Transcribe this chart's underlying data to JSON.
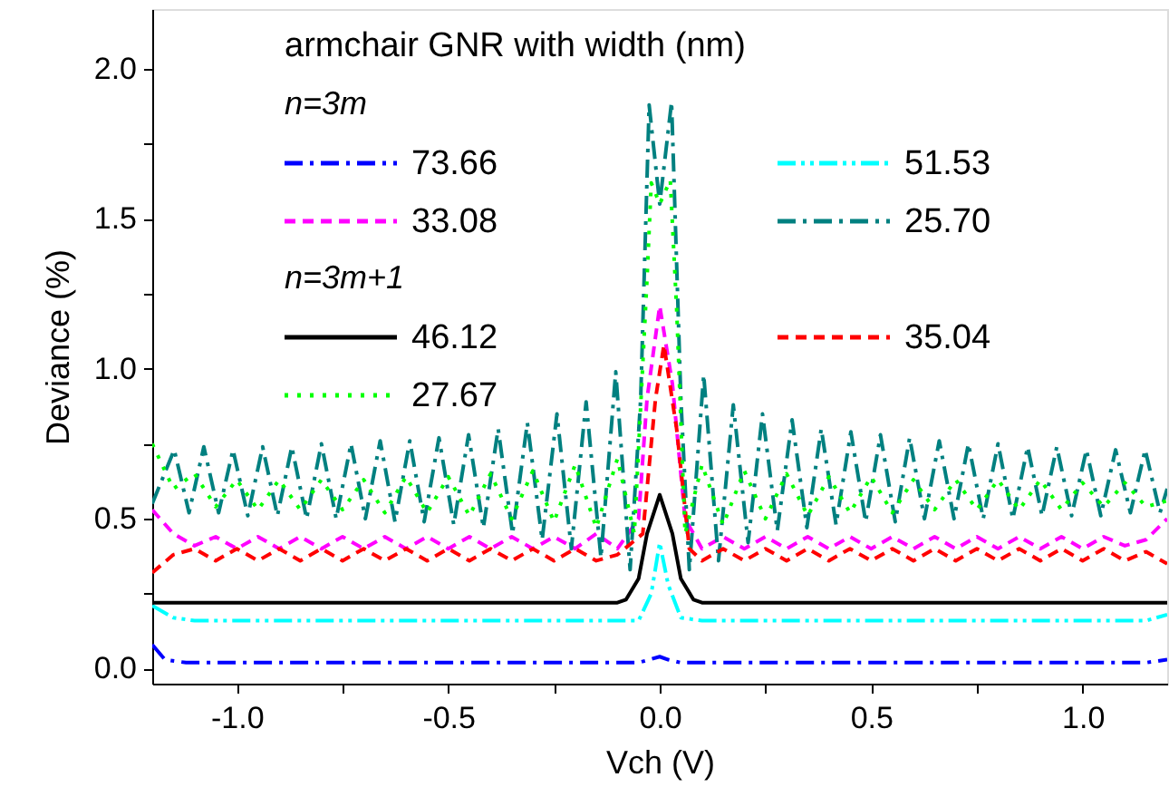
{
  "chart_data": {
    "type": "line",
    "xlabel": "Vch (V)",
    "ylabel": "Deviance (%)",
    "legend_title": "armchair GNR with  width (nm)",
    "legend": "top left",
    "grid": false,
    "annotations": [
      "n=3m",
      "n=3m+1"
    ],
    "xlim": [
      -1.2,
      1.2
    ],
    "ylim": [
      -0.05,
      2.2
    ],
    "xticks": [
      {
        "value": -1.0,
        "label": "-1.0"
      },
      {
        "value": -0.75,
        "label": null
      },
      {
        "value": -0.5,
        "label": "-0.5"
      },
      {
        "value": -0.25,
        "label": null
      },
      {
        "value": 0,
        "label": "0.0"
      },
      {
        "value": 0.25,
        "label": null
      },
      {
        "value": 0.5,
        "label": "0.5"
      },
      {
        "value": 0.75,
        "label": null
      },
      {
        "value": 1.0,
        "label": "1.0"
      }
    ],
    "yticks": [
      {
        "value": 0,
        "label": "0.0"
      },
      {
        "value": 0.25,
        "label": null
      },
      {
        "value": 0.5,
        "label": "0.5"
      },
      {
        "value": 0.75,
        "label": null
      },
      {
        "value": 1.0,
        "label": "1.0"
      },
      {
        "value": 1.25,
        "label": null
      },
      {
        "value": 1.5,
        "label": "1.5"
      },
      {
        "value": 1.75,
        "label": null
      },
      {
        "value": 2.0,
        "label": "2.0"
      }
    ],
    "series": [
      {
        "name": "73.66",
        "color": "#0000ff",
        "line_style": "dashdot",
        "x": [
          -1.2,
          -1.17,
          -1.12,
          -0.05,
          0.0,
          0.02,
          0.05,
          1.15,
          1.2
        ],
        "values": [
          0.08,
          0.03,
          0.02,
          0.02,
          0.04,
          0.03,
          0.02,
          0.02,
          0.03
        ]
      },
      {
        "name": "51.53",
        "color": "#00ffff",
        "line_style": "dashdotdot",
        "x": [
          -1.2,
          -1.15,
          -1.1,
          -0.05,
          -0.02,
          0.0,
          0.02,
          0.05,
          0.1,
          1.15,
          1.2
        ],
        "values": [
          0.21,
          0.17,
          0.16,
          0.16,
          0.25,
          0.42,
          0.28,
          0.17,
          0.16,
          0.16,
          0.18
        ]
      },
      {
        "name": "33.08",
        "color": "#ff00ff",
        "line_style": "dashed",
        "x": [
          -1.2,
          -1.15,
          -1.1,
          -1.05,
          -1.0,
          -0.95,
          -0.9,
          -0.85,
          -0.8,
          -0.75,
          -0.7,
          -0.65,
          -0.6,
          -0.55,
          -0.5,
          -0.45,
          -0.4,
          -0.35,
          -0.3,
          -0.25,
          -0.2,
          -0.15,
          -0.1,
          -0.05,
          -0.03,
          0.0,
          0.03,
          0.06,
          0.1,
          0.15,
          0.2,
          0.25,
          0.3,
          0.35,
          0.4,
          0.45,
          0.5,
          0.55,
          0.6,
          0.65,
          0.7,
          0.75,
          0.8,
          0.85,
          0.9,
          0.95,
          1.0,
          1.05,
          1.1,
          1.15,
          1.2
        ],
        "values": [
          0.53,
          0.45,
          0.41,
          0.44,
          0.4,
          0.44,
          0.4,
          0.44,
          0.4,
          0.44,
          0.4,
          0.44,
          0.4,
          0.44,
          0.4,
          0.44,
          0.4,
          0.44,
          0.4,
          0.44,
          0.4,
          0.45,
          0.4,
          0.5,
          0.9,
          1.21,
          0.95,
          0.5,
          0.4,
          0.44,
          0.4,
          0.44,
          0.4,
          0.44,
          0.4,
          0.44,
          0.4,
          0.44,
          0.4,
          0.44,
          0.4,
          0.44,
          0.4,
          0.44,
          0.4,
          0.44,
          0.4,
          0.44,
          0.41,
          0.43,
          0.5
        ]
      },
      {
        "name": "25.70",
        "color": "#008080",
        "line_style": "dashdot",
        "x": [
          -1.2,
          -1.148,
          -1.113,
          -1.078,
          -1.043,
          -1.009,
          -0.974,
          -0.939,
          -0.904,
          -0.87,
          -0.835,
          -0.8,
          -0.765,
          -0.73,
          -0.696,
          -0.661,
          -0.626,
          -0.591,
          -0.557,
          -0.522,
          -0.487,
          -0.452,
          -0.417,
          -0.382,
          -0.348,
          -0.313,
          -0.278,
          -0.243,
          -0.209,
          -0.174,
          -0.139,
          -0.104,
          -0.07,
          -0.045,
          -0.025,
          0.0,
          0.028,
          0.05,
          0.07,
          0.104,
          0.139,
          0.174,
          0.209,
          0.243,
          0.278,
          0.313,
          0.348,
          0.382,
          0.417,
          0.452,
          0.487,
          0.522,
          0.557,
          0.591,
          0.626,
          0.661,
          0.696,
          0.73,
          0.765,
          0.8,
          0.835,
          0.87,
          0.904,
          0.939,
          0.974,
          1.009,
          1.043,
          1.078,
          1.113,
          1.148,
          1.183,
          1.2
        ],
        "values": [
          0.55,
          0.73,
          0.52,
          0.74,
          0.52,
          0.73,
          0.51,
          0.74,
          0.51,
          0.74,
          0.5,
          0.75,
          0.5,
          0.75,
          0.5,
          0.76,
          0.49,
          0.76,
          0.49,
          0.77,
          0.48,
          0.78,
          0.47,
          0.8,
          0.45,
          0.82,
          0.43,
          0.85,
          0.4,
          0.89,
          0.37,
          0.99,
          0.33,
          0.9,
          1.88,
          1.55,
          1.89,
          0.9,
          0.33,
          0.98,
          0.36,
          0.88,
          0.42,
          0.85,
          0.46,
          0.83,
          0.47,
          0.8,
          0.48,
          0.79,
          0.49,
          0.78,
          0.49,
          0.77,
          0.5,
          0.76,
          0.5,
          0.75,
          0.5,
          0.75,
          0.5,
          0.74,
          0.51,
          0.74,
          0.51,
          0.73,
          0.51,
          0.73,
          0.52,
          0.73,
          0.52,
          0.6
        ]
      },
      {
        "name": "46.12",
        "color": "#000000",
        "line_style": "solid",
        "x": [
          -1.2,
          -0.1,
          -0.08,
          -0.05,
          -0.03,
          0.0,
          0.03,
          0.05,
          0.08,
          0.1,
          1.2
        ],
        "values": [
          0.22,
          0.22,
          0.23,
          0.3,
          0.45,
          0.58,
          0.45,
          0.3,
          0.23,
          0.22,
          0.22
        ]
      },
      {
        "name": "35.04",
        "color": "#ff0000",
        "line_style": "dashed",
        "x": [
          -1.2,
          -1.15,
          -1.1,
          -1.05,
          -1.0,
          -0.95,
          -0.9,
          -0.85,
          -0.8,
          -0.75,
          -0.7,
          -0.65,
          -0.6,
          -0.55,
          -0.5,
          -0.45,
          -0.4,
          -0.35,
          -0.3,
          -0.25,
          -0.2,
          -0.15,
          -0.1,
          -0.04,
          -0.01,
          0.01,
          0.04,
          0.07,
          0.1,
          0.15,
          0.2,
          0.25,
          0.3,
          0.35,
          0.4,
          0.45,
          0.5,
          0.55,
          0.6,
          0.65,
          0.7,
          0.75,
          0.8,
          0.85,
          0.9,
          0.95,
          1.0,
          1.05,
          1.1,
          1.15,
          1.2
        ],
        "values": [
          0.32,
          0.38,
          0.4,
          0.36,
          0.4,
          0.36,
          0.4,
          0.36,
          0.4,
          0.36,
          0.4,
          0.36,
          0.4,
          0.36,
          0.4,
          0.36,
          0.4,
          0.36,
          0.4,
          0.36,
          0.4,
          0.36,
          0.38,
          0.45,
          0.9,
          1.08,
          0.8,
          0.4,
          0.36,
          0.4,
          0.36,
          0.4,
          0.36,
          0.4,
          0.36,
          0.4,
          0.36,
          0.4,
          0.36,
          0.4,
          0.36,
          0.4,
          0.36,
          0.4,
          0.36,
          0.4,
          0.36,
          0.4,
          0.36,
          0.39,
          0.35
        ]
      },
      {
        "name": "27.67",
        "color": "#00ff00",
        "line_style": "dotted",
        "x": [
          -1.2,
          -1.15,
          -1.1,
          -1.05,
          -1.0,
          -0.95,
          -0.9,
          -0.85,
          -0.8,
          -0.75,
          -0.7,
          -0.65,
          -0.6,
          -0.55,
          -0.5,
          -0.45,
          -0.4,
          -0.35,
          -0.3,
          -0.25,
          -0.2,
          -0.15,
          -0.1,
          -0.06,
          -0.03,
          -0.02,
          0.0,
          0.025,
          0.04,
          0.06,
          0.1,
          0.15,
          0.2,
          0.25,
          0.3,
          0.35,
          0.4,
          0.45,
          0.5,
          0.55,
          0.6,
          0.65,
          0.7,
          0.75,
          0.8,
          0.85,
          0.9,
          0.95,
          1.0,
          1.05,
          1.1,
          1.15,
          1.2
        ],
        "values": [
          0.75,
          0.6,
          0.65,
          0.54,
          0.63,
          0.53,
          0.63,
          0.53,
          0.63,
          0.53,
          0.63,
          0.52,
          0.64,
          0.52,
          0.64,
          0.51,
          0.65,
          0.5,
          0.66,
          0.49,
          0.68,
          0.47,
          0.7,
          0.45,
          1.3,
          1.62,
          1.55,
          1.63,
          1.2,
          0.45,
          0.68,
          0.48,
          0.66,
          0.5,
          0.65,
          0.51,
          0.64,
          0.52,
          0.64,
          0.52,
          0.63,
          0.53,
          0.63,
          0.53,
          0.63,
          0.53,
          0.63,
          0.53,
          0.62,
          0.54,
          0.62,
          0.54,
          0.56
        ]
      }
    ]
  }
}
